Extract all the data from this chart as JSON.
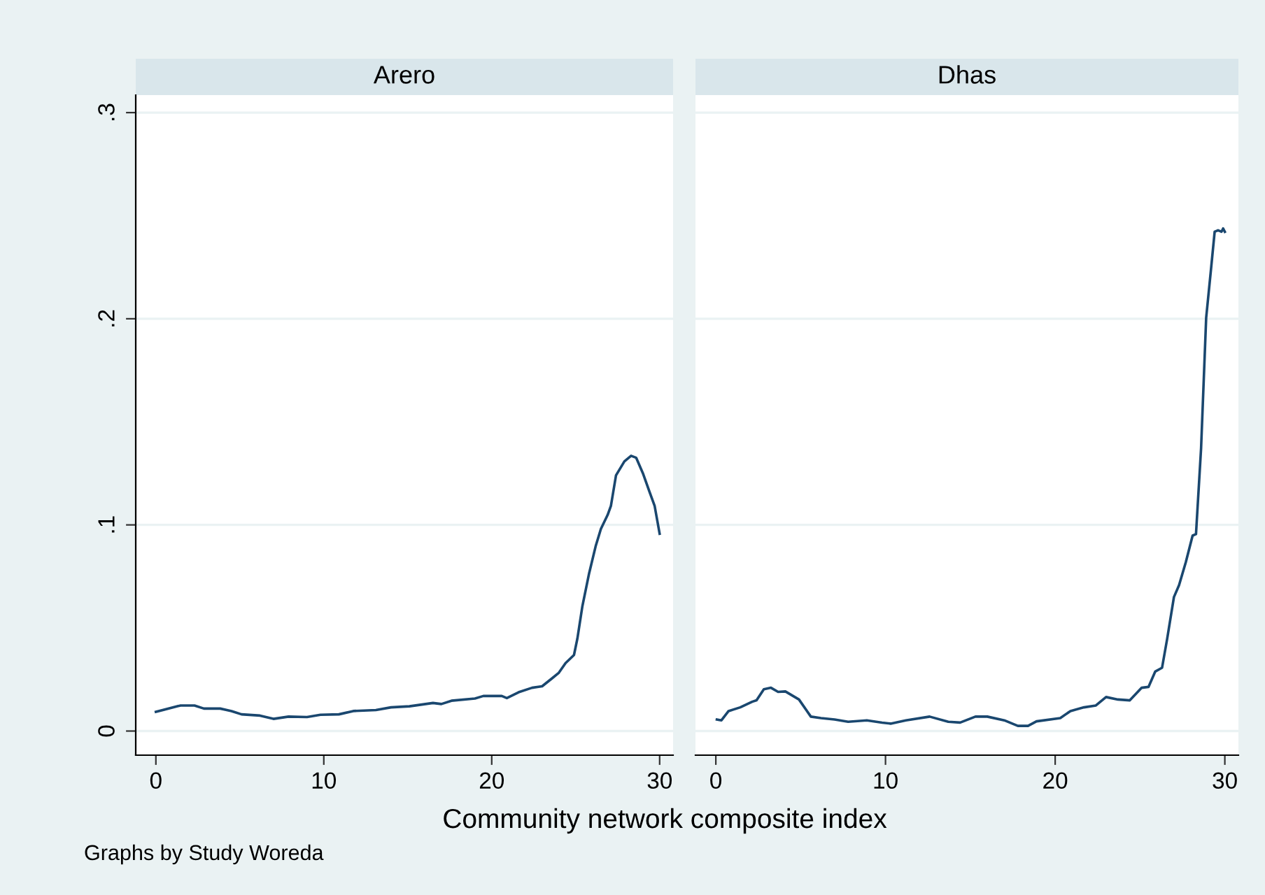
{
  "chart_data": [
    {
      "type": "line",
      "title": "Arero",
      "xlabel": "Community network composite index",
      "annotations": [
        "Graphs by Study Woreda"
      ],
      "series": [
        {
          "color": "#1a476f",
          "x": [
            0,
            1.47,
            2.3,
            2.86,
            3.83,
            4.5,
            5.1,
            6.2,
            7.0,
            7.9,
            9.0,
            9.8,
            10.9,
            11.75,
            13.1,
            14.0,
            15.1,
            16.5,
            17.0,
            17.6,
            19.0,
            19.5,
            20.6,
            20.9,
            21.6,
            22.4,
            23.0,
            23.6,
            24.0,
            24.4,
            24.9,
            25.1,
            25.4,
            25.8,
            26.2,
            26.5,
            26.9,
            27.1,
            27.4,
            27.9,
            28.3,
            28.6,
            29.0,
            29.4,
            29.7,
            30.0
          ],
          "values": [
            0.0093,
            0.0124,
            0.0124,
            0.0109,
            0.0109,
            0.0097,
            0.0081,
            0.0075,
            0.0059,
            0.007,
            0.0068,
            0.0079,
            0.0081,
            0.0097,
            0.0102,
            0.0115,
            0.012,
            0.0136,
            0.0131,
            0.0147,
            0.0158,
            0.017,
            0.017,
            0.016,
            0.0188,
            0.021,
            0.0217,
            0.0256,
            0.0283,
            0.033,
            0.0369,
            0.0448,
            0.0606,
            0.0765,
            0.09,
            0.098,
            0.1048,
            0.1093,
            0.124,
            0.1308,
            0.1335,
            0.1326,
            0.1251,
            0.116,
            0.1093,
            0.0957
          ]
        }
      ],
      "xlim": [
        -1.2,
        30.8
      ],
      "ylim": [
        -0.0117,
        0.3085
      ],
      "xticks": [
        0,
        10,
        20,
        30
      ],
      "yticks": [
        {
          "value": 0,
          "label": "0"
        },
        {
          "value": 0.1,
          "label": ".1"
        },
        {
          "value": 0.2,
          "label": ".2"
        },
        {
          "value": 0.3,
          "label": ".3"
        }
      ],
      "grid": "y",
      "legend": false,
      "marker": "none",
      "line_style": "solid"
    },
    {
      "type": "line",
      "title": "Dhas",
      "series": [
        {
          "color": "#1a476f",
          "x": [
            0.06,
            0.33,
            0.75,
            1.44,
            2.14,
            2.4,
            2.83,
            3.25,
            3.67,
            4.1,
            4.9,
            5.6,
            6.2,
            7.0,
            7.8,
            8.9,
            9.8,
            10.3,
            11.2,
            12.6,
            13.7,
            14.4,
            15.3,
            16.0,
            17.0,
            17.8,
            18.4,
            18.9,
            20.3,
            20.9,
            21.7,
            22.4,
            23.0,
            23.7,
            24.4,
            25.1,
            25.5,
            25.9,
            26.3,
            26.6,
            27.0,
            27.3,
            27.7,
            28.1,
            28.3,
            28.6,
            28.9,
            29.2,
            29.4,
            29.6,
            29.8,
            29.9,
            30.0
          ],
          "values": [
            0.0056,
            0.0052,
            0.0097,
            0.0115,
            0.0142,
            0.0149,
            0.0203,
            0.021,
            0.019,
            0.0192,
            0.0153,
            0.007,
            0.0063,
            0.0056,
            0.0045,
            0.0052,
            0.0041,
            0.0036,
            0.0052,
            0.007,
            0.0045,
            0.0041,
            0.007,
            0.007,
            0.0052,
            0.0025,
            0.0025,
            0.0047,
            0.0063,
            0.0097,
            0.0115,
            0.0124,
            0.0165,
            0.0153,
            0.0149,
            0.021,
            0.0214,
            0.0289,
            0.0307,
            0.0447,
            0.065,
            0.0707,
            0.0819,
            0.0948,
            0.0955,
            0.1372,
            0.2005,
            0.2253,
            0.2422,
            0.2429,
            0.2422,
            0.2438,
            0.2422
          ]
        }
      ],
      "xlim": [
        -1.2,
        30.8
      ],
      "ylim": [
        -0.0117,
        0.3085
      ],
      "xticks": [
        0,
        10,
        20,
        30
      ],
      "yticks": [
        {
          "value": 0,
          "label": null
        },
        {
          "value": 0.1,
          "label": null
        },
        {
          "value": 0.2,
          "label": null
        },
        {
          "value": 0.3,
          "label": null
        }
      ],
      "tick_labels": "x",
      "grid": "y",
      "legend": false,
      "marker": "none",
      "line_style": "solid"
    }
  ]
}
